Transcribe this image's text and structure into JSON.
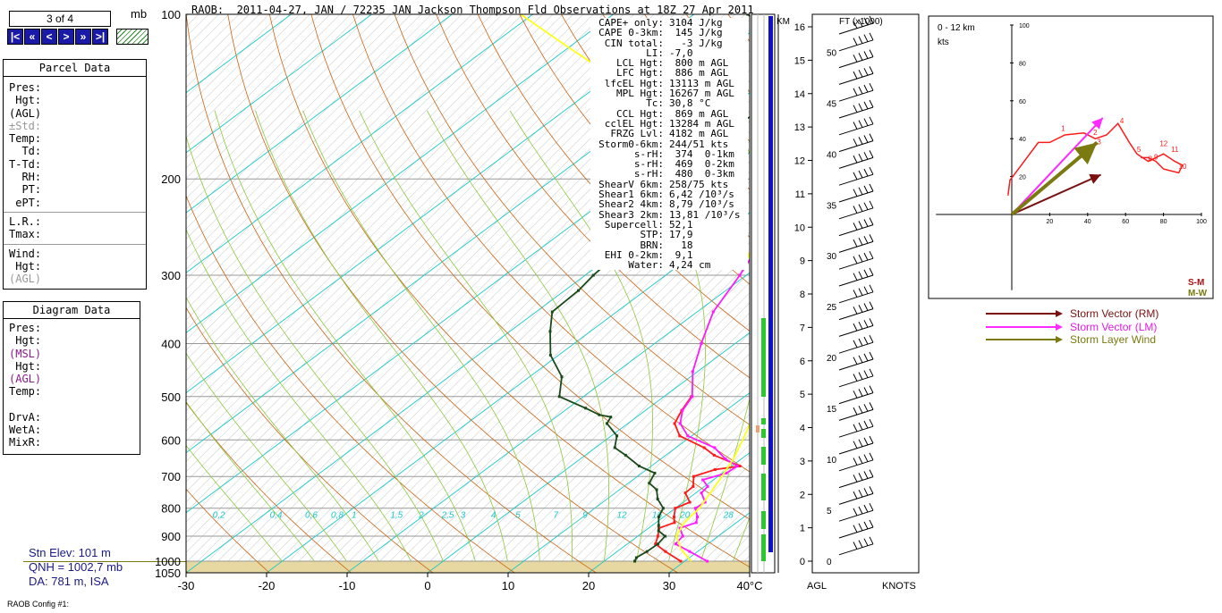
{
  "nav": {
    "counter": "3 of 4",
    "units_label": "mb",
    "buttons": [
      "|<",
      "«",
      "<",
      ">",
      "»",
      ">|"
    ]
  },
  "parcel_panel": {
    "title": "Parcel Data",
    "rows": [
      "Pres:",
      " Hgt:",
      "(AGL)",
      "±Std:",
      "Temp:",
      "  Td:",
      "T-Td:",
      "  RH:",
      "  PT:",
      " ePT:"
    ],
    "rows2": [
      "L.R.:",
      "Tmax:"
    ],
    "rows3": [
      "Wind:",
      " Hgt:",
      "(AGL)"
    ]
  },
  "diagram_panel": {
    "title": "Diagram Data",
    "rows": [
      "Pres:",
      " Hgt:",
      "(MSL)",
      " Hgt:",
      "(AGL)",
      "Temp:"
    ],
    "rows2": [
      "DrvA:",
      "WetA:",
      "MixR:"
    ]
  },
  "station": {
    "elev": "Stn Elev: 101 m",
    "qnh": "QNH = 1002,7 mb",
    "da": "DA: 781 m, ISA"
  },
  "config_label": "RAOB Config #1:",
  "title": "RAOB:  2011-04-27, JAN / 72235 JAN Jackson Thompson Fld Observations at 18Z 27 Apr 2011",
  "indices": [
    {
      "k": "CAPE+ only:",
      "v": "3104 J/kg"
    },
    {
      "k": "CAPE 0-3km:",
      "v": " 145 J/kg"
    },
    {
      "k": "CIN total:",
      "v": "  -3 J/kg"
    },
    {
      "k": "LI:",
      "v": "-7,0"
    },
    {
      "k": "LCL Hgt:",
      "v": " 800 m AGL"
    },
    {
      "k": "LFC Hgt:",
      "v": " 886 m AGL"
    },
    {
      "k": "lfcEL Hgt:",
      "v": "13113 m AGL"
    },
    {
      "k": "MPL Hgt:",
      "v": "16267 m AGL"
    },
    {
      "k": "Tc:",
      "v": "30,8 °C"
    },
    {
      "k": "CCL Hgt:",
      "v": " 869 m AGL"
    },
    {
      "k": "cclEL Hgt:",
      "v": "13284 m AGL"
    },
    {
      "k": "FRZG Lvl:",
      "v": "4182 m AGL"
    },
    {
      "k": "Storm0-6km:",
      "v": "244/51 kts"
    },
    {
      "k": "s-rH:",
      "v": " 374  0-1km"
    },
    {
      "k": "s-rH:",
      "v": " 469  0-2km"
    },
    {
      "k": "s-rH:",
      "v": " 480  0-3km"
    },
    {
      "k": "ShearV 6km:",
      "v": "258/75 kts"
    },
    {
      "k": "Shear1 6km:",
      "v": "6,42 /10³/s"
    },
    {
      "k": "Shear2 4km:",
      "v": "8,79 /10³/s"
    },
    {
      "k": "Shear3 2km:",
      "v": "13,81 /10³/s"
    },
    {
      "k": "Supercell:",
      "v": "52,1"
    },
    {
      "k": "STP:",
      "v": "17,9"
    },
    {
      "k": "BRN:",
      "v": "  18"
    },
    {
      "k": "EHI 0-2km:",
      "v": " 9,1"
    },
    {
      "k": "Water:",
      "v": "4,24 cm"
    }
  ],
  "colors": {
    "temp": "#ff1a1a",
    "dewpoint": "#1a4a1a",
    "parcel": "#ffff1a",
    "wetbulb": "#ff1aff",
    "isotherm": "#1ac8c8",
    "dry_adiabat": "#c86414",
    "moist_adiabat": "#8cc83c",
    "mixing_ratio": "#aaaaaa",
    "ground": "#e6d8a0",
    "rm": "#7a1010",
    "lm": "#ff2aff",
    "slw": "#7a7a10"
  },
  "chart_data": [
    {
      "type": "line",
      "name": "skew-t",
      "xlabel": "°C",
      "ylabel": "mb",
      "xlim": [
        -30,
        40
      ],
      "ylim": [
        1050,
        100
      ],
      "x_ticks": [
        -30,
        -20,
        -10,
        0,
        10,
        20,
        30,
        "40°C"
      ],
      "y_ticks": [
        100,
        200,
        300,
        400,
        500,
        600,
        700,
        800,
        900,
        1000,
        1050
      ],
      "mixing_ratio_labels": [
        "0,2",
        "0,4",
        "0,6",
        "0,8",
        "1",
        "1,5",
        "2",
        "2,5",
        "3",
        "4",
        "5",
        "7",
        "9",
        "12",
        "16",
        "20",
        "28",
        "36"
      ],
      "series": [
        {
          "key": "temp",
          "points": [
            [
              29.5,
              1000
            ],
            [
              26,
              960
            ],
            [
              23.5,
              930
            ],
            [
              22.5,
              900
            ],
            [
              21.3,
              870
            ],
            [
              22.3,
              850
            ],
            [
              21.3,
              830
            ],
            [
              20,
              800
            ],
            [
              20.8,
              780
            ],
            [
              18.7,
              750
            ],
            [
              18.6,
              730
            ],
            [
              17,
              700
            ],
            [
              18.5,
              680
            ],
            [
              21,
              670
            ],
            [
              16,
              640
            ],
            [
              13.5,
              620
            ],
            [
              8.5,
              590
            ],
            [
              5.8,
              560
            ],
            [
              4.5,
              530
            ],
            [
              3.4,
              500
            ]
          ]
        },
        {
          "key": "wetbulb",
          "points": [
            [
              32.8,
              1000
            ],
            [
              29,
              960
            ],
            [
              26,
              930
            ],
            [
              25.6,
              900
            ],
            [
              23.9,
              870
            ],
            [
              25,
              850
            ],
            [
              24.2,
              830
            ],
            [
              22.5,
              800
            ],
            [
              22.7,
              780
            ],
            [
              20.7,
              750
            ],
            [
              20.4,
              730
            ],
            [
              18.7,
              710
            ],
            [
              20.5,
              690
            ],
            [
              20.7,
              670
            ],
            [
              18,
              650
            ],
            [
              14.8,
              620
            ],
            [
              9.5,
              590
            ],
            [
              6.5,
              560
            ],
            [
              4.6,
              530
            ],
            [
              3.5,
              500
            ],
            [
              -0.6,
              450
            ],
            [
              -4.2,
              400
            ],
            [
              -8,
              350
            ],
            [
              -10.8,
              300
            ],
            [
              -14.6,
              250
            ],
            [
              -17.2,
              220
            ],
            [
              -20.3,
              200
            ],
            [
              -23.5,
              180
            ],
            [
              -27.4,
              160
            ],
            [
              -30,
              150
            ],
            [
              -32.5,
              140
            ],
            [
              -36.5,
              130
            ],
            [
              -41,
              120
            ],
            [
              -40,
              115
            ],
            [
              -37.5,
              108
            ],
            [
              -34.5,
              100
            ]
          ]
        },
        {
          "key": "dewpoint",
          "points": [
            [
              23.8,
              1000
            ],
            [
              23.4,
              985
            ],
            [
              23.7,
              960
            ],
            [
              23.8,
              930
            ],
            [
              23.4,
              900
            ],
            [
              21.7,
              880
            ],
            [
              20.8,
              860
            ],
            [
              19.4,
              830
            ],
            [
              18.5,
              800
            ],
            [
              16.3,
              770
            ],
            [
              14.6,
              740
            ],
            [
              12.6,
              720
            ],
            [
              11.6,
              690
            ],
            [
              8.5,
              670
            ],
            [
              5,
              640
            ],
            [
              2.4,
              620
            ],
            [
              0.7,
              590
            ],
            [
              -2.6,
              560
            ],
            [
              -3.2,
              545
            ],
            [
              -5,
              540
            ],
            [
              -7.8,
              525
            ],
            [
              -13,
              500
            ],
            [
              -16,
              460
            ],
            [
              -21,
              420
            ],
            [
              -25,
              380
            ],
            [
              -28,
              350
            ],
            [
              -28.3,
              320
            ],
            [
              -29,
              300
            ],
            [
              -29.4,
              280
            ],
            [
              -30.6,
              250
            ],
            [
              -32.6,
              220
            ],
            [
              -34.6,
              200
            ],
            [
              -37.6,
              180
            ],
            [
              -40.1,
              165
            ],
            [
              -36.4,
              160
            ],
            [
              -35.6,
              150
            ],
            [
              -38.4,
              140
            ],
            [
              -40.6,
              130
            ],
            [
              -42.7,
              120
            ],
            [
              -45.3,
              115
            ],
            [
              -47.4,
              110
            ],
            [
              -49.8,
              105
            ],
            [
              -53.3,
              100
            ]
          ]
        },
        {
          "key": "parcel",
          "points": [
            [
              30.8,
              1000
            ],
            [
              27.5,
              950
            ],
            [
              24.8,
              900
            ],
            [
              23.5,
              850
            ],
            [
              23,
              800
            ],
            [
              21.8,
              750
            ],
            [
              20.5,
              700
            ],
            [
              19,
              650
            ],
            [
              17,
              600
            ],
            [
              14.7,
              550
            ],
            [
              12,
              500
            ],
            [
              8.3,
              450
            ],
            [
              4,
              400
            ],
            [
              -1.5,
              350
            ],
            [
              -8.8,
              300
            ],
            [
              -18,
              250
            ],
            [
              -30,
              200
            ],
            [
              -38.3,
              170
            ],
            [
              -53.5,
              140
            ],
            [
              -70,
              115
            ],
            [
              -81.5,
              100
            ]
          ]
        }
      ]
    },
    {
      "type": "scatter",
      "name": "hodograph",
      "title": "0 - 12 km",
      "units": "kts",
      "xlim": [
        -40,
        100
      ],
      "ylim": [
        -40,
        100
      ],
      "x_ticks": [
        20,
        40,
        60,
        80,
        100
      ],
      "y_ticks": [
        20,
        40,
        60,
        80,
        100
      ],
      "trace": [
        [
          -2,
          10
        ],
        [
          -1,
          18
        ],
        [
          5,
          26
        ],
        [
          14,
          38
        ],
        [
          20,
          38
        ],
        [
          28,
          42
        ],
        [
          38,
          43
        ],
        [
          44,
          40
        ],
        [
          50,
          42
        ],
        [
          56,
          48
        ],
        [
          62,
          38
        ],
        [
          66,
          32
        ],
        [
          72,
          28
        ],
        [
          80,
          32
        ],
        [
          86,
          28
        ],
        [
          90,
          26
        ],
        [
          88,
          22
        ],
        [
          80,
          24
        ],
        [
          76,
          28
        ],
        [
          72,
          30
        ],
        [
          68,
          30
        ]
      ],
      "km_labels": [
        {
          "t": "1",
          "x": 26,
          "y": 44
        },
        {
          "t": "2",
          "x": 43,
          "y": 42
        },
        {
          "t": "3",
          "x": 45,
          "y": 37
        },
        {
          "t": "4",
          "x": 57,
          "y": 48
        },
        {
          "t": "5",
          "x": 66,
          "y": 33
        },
        {
          "t": "8",
          "x": 72,
          "y": 28
        },
        {
          "t": "9",
          "x": 75,
          "y": 29
        },
        {
          "t": "10",
          "x": 88,
          "y": 24
        },
        {
          "t": "11",
          "x": 84,
          "y": 33
        },
        {
          "t": "12",
          "x": 78,
          "y": 36
        }
      ],
      "vectors": [
        {
          "key": "rm",
          "to": [
            47,
            21
          ]
        },
        {
          "key": "lm",
          "to": [
            48,
            51
          ]
        },
        {
          "key": "slw",
          "to": [
            45,
            38
          ]
        }
      ],
      "labels": {
        "sm": "S-M",
        "mw": "M-W"
      }
    }
  ],
  "height_axis": {
    "km_label": "KM",
    "km_ticks": [
      0,
      1,
      2,
      3,
      4,
      5,
      6,
      7,
      8,
      9,
      10,
      11,
      12,
      13,
      14,
      15,
      16
    ],
    "ft_label": "FT (x1000)",
    "ft_ticks": [
      0,
      5,
      10,
      15,
      20,
      25,
      30,
      35,
      40,
      45,
      50
    ],
    "agl_label": "AGL",
    "knots_label": "KNOTS"
  },
  "hodo_legend": [
    {
      "key": "rm",
      "label": "Storm Vector (RM)"
    },
    {
      "key": "lm",
      "label": "Storm Vector (LM)"
    },
    {
      "key": "slw",
      "label": "Storm Layer Wind"
    }
  ]
}
